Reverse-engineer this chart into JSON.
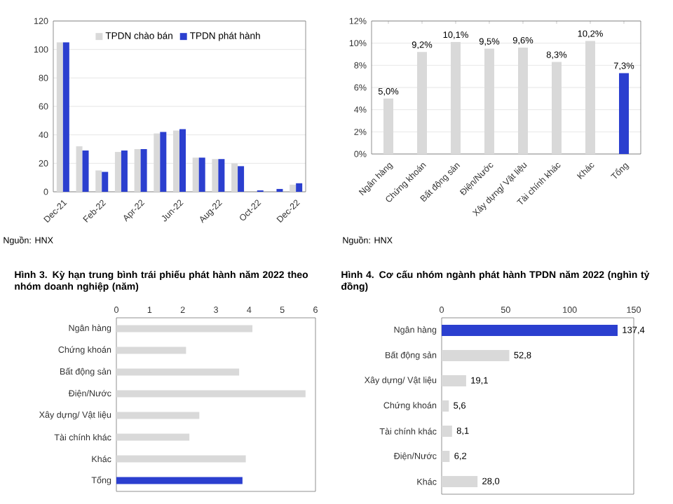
{
  "chart_data": [
    {
      "type": "bar",
      "categories": [
        "Dec-21",
        null,
        "Feb-22",
        null,
        "Apr-22",
        null,
        "Jun-22",
        null,
        "Aug-22",
        null,
        "Oct-22",
        null,
        "Dec-22"
      ],
      "series": [
        {
          "name": "TPDN chào bán",
          "color": "#d9d9d9",
          "values": [
            105,
            32,
            15,
            28,
            30,
            41,
            43,
            24,
            23,
            20,
            null,
            null,
            5
          ]
        },
        {
          "name": "TPDN phát hành",
          "color": "#2b3fcf",
          "values": [
            105,
            29,
            14,
            29,
            30,
            42,
            44,
            24,
            23,
            18,
            1,
            2,
            6
          ]
        }
      ],
      "ylim": [
        0,
        120
      ],
      "yticks": [
        0,
        20,
        40,
        60,
        80,
        100,
        120
      ],
      "grid": "y",
      "legend": "top",
      "annotations": [
        "Nguồn: HNX"
      ]
    },
    {
      "type": "bar",
      "categories": [
        "Ngân hàng",
        "Chứng khoán",
        "Bất động sản",
        "Điện/Nước",
        "Xây dựng/ Vật liệu",
        "Tài chính khác",
        "Khác",
        "Tổng"
      ],
      "values": [
        5.0,
        9.2,
        10.1,
        9.5,
        9.6,
        8.3,
        10.2,
        7.3
      ],
      "colors": [
        "#d9d9d9",
        "#d9d9d9",
        "#d9d9d9",
        "#d9d9d9",
        "#d9d9d9",
        "#d9d9d9",
        "#d9d9d9",
        "#2b3fcf"
      ],
      "value_labels": [
        "5,0%",
        "9,2%",
        "10,1%",
        "9,5%",
        "9,6%",
        "8,3%",
        "10,2%",
        "7,3%"
      ],
      "ylim": [
        0,
        12
      ],
      "yticks": [
        {
          "value": 0,
          "label": "0%"
        },
        {
          "value": 2,
          "label": "2%"
        },
        {
          "value": 4,
          "label": "4%"
        },
        {
          "value": 6,
          "label": "6%"
        },
        {
          "value": 8,
          "label": "8%"
        },
        {
          "value": 10,
          "label": "10%"
        },
        {
          "value": 12,
          "label": "12%"
        }
      ],
      "grid": "y",
      "annotations": [
        "Nguồn: HNX"
      ]
    },
    {
      "type": "bar",
      "orientation": "horizontal",
      "title": "Hình 3. Kỳ hạn trung bình trái phiếu phát hành năm 2022 theo nhóm doanh nghiệp (năm)",
      "categories": [
        "Ngân hàng",
        "Chứng khoán",
        "Bất động sản",
        "Điện/Nước",
        "Xây dựng/ Vật liệu",
        "Tài chính khác",
        "Khác",
        "Tổng"
      ],
      "values": [
        4.1,
        2.1,
        3.7,
        5.7,
        2.5,
        2.2,
        3.9,
        3.8
      ],
      "colors": [
        "#d9d9d9",
        "#d9d9d9",
        "#d9d9d9",
        "#d9d9d9",
        "#d9d9d9",
        "#d9d9d9",
        "#d9d9d9",
        "#2b3fcf"
      ],
      "xlim": [
        0,
        6
      ],
      "xticks": [
        0,
        1,
        2,
        3,
        4,
        5,
        6
      ]
    },
    {
      "type": "bar",
      "orientation": "horizontal",
      "title": "Hình 4. Cơ cấu nhóm ngành phát hành TPDN năm 2022 (nghìn tỷ đồng)",
      "categories": [
        "Ngân hàng",
        "Bất động sản",
        "Xây dựng/ Vật liệu",
        "Chứng khoán",
        "Tài chính khác",
        "Điện/Nước",
        "Khác"
      ],
      "values": [
        137.4,
        52.8,
        19.1,
        5.6,
        8.1,
        6.2,
        28.0
      ],
      "colors": [
        "#2b3fcf",
        "#d9d9d9",
        "#d9d9d9",
        "#d9d9d9",
        "#d9d9d9",
        "#d9d9d9",
        "#d9d9d9"
      ],
      "value_labels": [
        "137,4",
        "52,8",
        "19,1",
        "5,6",
        "8,1",
        "6,2",
        "28,0"
      ],
      "xlim": [
        0,
        150
      ],
      "xticks": [
        0,
        50,
        100,
        150
      ]
    }
  ]
}
